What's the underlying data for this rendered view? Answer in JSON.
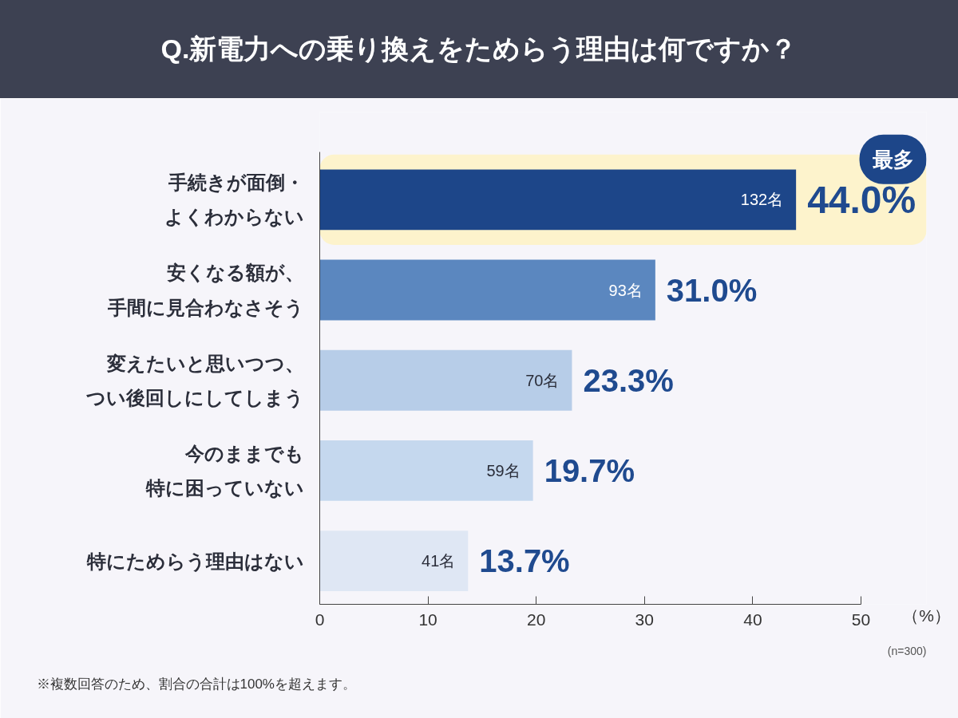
{
  "chart_data": {
    "type": "bar",
    "orientation": "horizontal",
    "title": "Q.新電力への乗り換えをためらう理由は何ですか？",
    "xlabel": "（%）",
    "categories": [
      "手続きが面倒・よくわからない",
      "安くなる額が、手間に見合わなさそう",
      "変えたいと思いつつ、つい後回しにしてしまう",
      "今のままでも特に困っていない",
      "特にためらう理由はない"
    ],
    "values": [
      44.0,
      31.0,
      23.3,
      19.7,
      13.7
    ],
    "colors": [
      "#1d4689",
      "#5b87bf",
      "#b7cde8",
      "#c5d8ee",
      "#dfe7f4"
    ],
    "value_labels": [
      "44.0%",
      "31.0%",
      "23.3%",
      "19.7%",
      "13.7%"
    ],
    "xlim": [
      0,
      50
    ],
    "xticks": [
      0,
      10,
      20,
      30,
      40,
      50
    ],
    "bands": [
      {
        "axis": "y",
        "from": "手続きが面倒・よくわからない",
        "to": "手続きが面倒・よくわからない",
        "label": "最多",
        "color": "#fdf3cc"
      }
    ],
    "annotations": [
      {
        "text": "132名",
        "x": 44.0,
        "y": "手続きが面倒・よくわからない"
      },
      {
        "text": "93名",
        "x": 31.0,
        "y": "安くなる額が、手間に見合わなさそう"
      },
      {
        "text": "70名",
        "x": 23.3,
        "y": "変えたいと思いつつ、つい後回しにしてしまう"
      },
      {
        "text": "59名",
        "x": 19.7,
        "y": "今のままでも特に困っていない"
      },
      {
        "text": "41名",
        "x": 13.7,
        "y": "特にためらう理由はない"
      },
      "(n=300)",
      "※複数回答のため、割合の合計は100%を超えます。"
    ]
  }
}
